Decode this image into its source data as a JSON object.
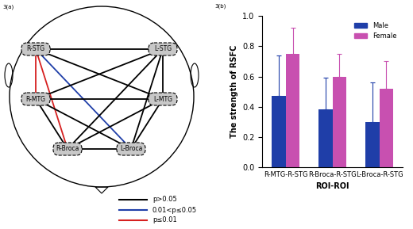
{
  "chart_data": {
    "type": "bar",
    "panel_label": "3(b)",
    "x_label": "ROI-ROI",
    "y_label": "The strength of RSFC",
    "categories": [
      "R-MTG-R-STG",
      "R-Broca-R-STG",
      "L-Broca-R-STG"
    ],
    "series": [
      {
        "name": "Male",
        "color": "#1f3ea8",
        "values": [
          0.47,
          0.38,
          0.3
        ],
        "errors": [
          0.27,
          0.21,
          0.26
        ]
      },
      {
        "name": "Female",
        "color": "#c850b0",
        "values": [
          0.75,
          0.6,
          0.52
        ],
        "errors": [
          0.17,
          0.15,
          0.18
        ]
      }
    ],
    "ylim": [
      0,
      1.0
    ],
    "yticks": [
      {
        "value": 0,
        "label": "0.0"
      },
      {
        "value": 0.2,
        "label": "0.2"
      },
      {
        "value": 0.4,
        "label": "0.4"
      },
      {
        "value": 0.6,
        "label": "0.6"
      },
      {
        "value": 0.8,
        "label": "0.8"
      },
      {
        "value": 1.0,
        "label": "1.0"
      }
    ],
    "legend": "upper right"
  },
  "diagram": {
    "panel_label": "3(a)",
    "nodes": [
      "R-STG",
      "L-STG",
      "R-MTG",
      "L-MTG",
      "R-Broca",
      "L-Broca"
    ],
    "edges": [
      {
        "from": "R-STG",
        "to": "L-STG",
        "color": "#000000"
      },
      {
        "from": "R-STG",
        "to": "R-MTG",
        "color": "#d62020"
      },
      {
        "from": "R-STG",
        "to": "L-MTG",
        "color": "#000000"
      },
      {
        "from": "R-STG",
        "to": "R-Broca",
        "color": "#d62020"
      },
      {
        "from": "R-STG",
        "to": "L-Broca",
        "color": "#1f3ea8"
      },
      {
        "from": "L-STG",
        "to": "R-MTG",
        "color": "#000000"
      },
      {
        "from": "L-STG",
        "to": "L-MTG",
        "color": "#000000"
      },
      {
        "from": "L-STG",
        "to": "R-Broca",
        "color": "#000000"
      },
      {
        "from": "L-STG",
        "to": "L-Broca",
        "color": "#000000"
      },
      {
        "from": "R-MTG",
        "to": "L-MTG",
        "color": "#000000"
      },
      {
        "from": "R-MTG",
        "to": "R-Broca",
        "color": "#000000"
      },
      {
        "from": "R-MTG",
        "to": "L-Broca",
        "color": "#000000"
      },
      {
        "from": "L-MTG",
        "to": "R-Broca",
        "color": "#000000"
      },
      {
        "from": "L-MTG",
        "to": "L-Broca",
        "color": "#000000"
      },
      {
        "from": "R-Broca",
        "to": "L-Broca",
        "color": "#000000"
      }
    ],
    "legend": [
      {
        "label": "p>0.05",
        "color": "#000000"
      },
      {
        "label": "0.01<p≤0.05",
        "color": "#1f3ea8"
      },
      {
        "label": "p≤0.01",
        "color": "#d62020"
      }
    ]
  }
}
